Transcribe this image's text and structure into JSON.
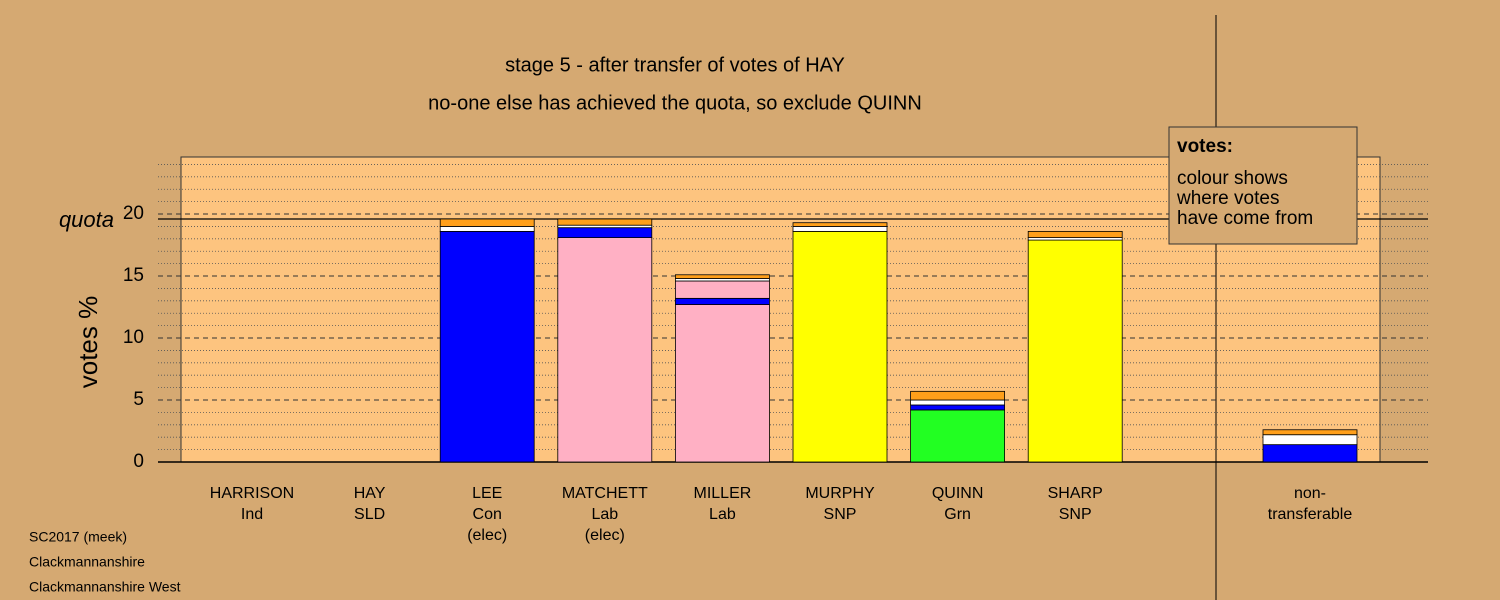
{
  "chart_data": {
    "type": "stacked-bar",
    "title": "stage 5 - after transfer of votes of HAY",
    "subtitle": "no-one else has achieved the quota, so exclude QUINN",
    "y_label": "votes %",
    "quota": {
      "label": "quota",
      "value": 19.6
    },
    "ylim": [
      0,
      24.6
    ],
    "yticks": [
      0,
      5,
      10,
      15,
      20
    ],
    "minor_yticks": [
      1,
      2,
      3,
      4,
      6,
      7,
      8,
      9,
      11,
      12,
      13,
      14,
      16,
      17,
      18,
      19,
      21,
      22,
      23,
      24
    ],
    "categories": [
      [
        "HARRISON",
        "Ind"
      ],
      [
        "HAY",
        "SLD"
      ],
      [
        "LEE",
        "Con",
        "(elec)"
      ],
      [
        "MATCHETT",
        "Lab",
        "(elec)"
      ],
      [
        "MILLER",
        "Lab"
      ],
      [
        "MURPHY",
        "SNP"
      ],
      [
        "QUINN",
        "Grn"
      ],
      [
        "SHARP",
        "SNP"
      ]
    ],
    "stacks": [
      [],
      [],
      [
        {
          "color": "#0000ff",
          "value": 18.6
        },
        {
          "color": "#ffffff",
          "value": 0.4
        },
        {
          "color": "#ff9f1a",
          "value": 0.6
        }
      ],
      [
        {
          "color": "#ffb0c4",
          "value": 18.1
        },
        {
          "color": "#0000ff",
          "value": 0.8
        },
        {
          "color": "#ffffff",
          "value": 0.2
        },
        {
          "color": "#ff9f1a",
          "value": 0.5
        }
      ],
      [
        {
          "color": "#ffb0c4",
          "value": 12.7
        },
        {
          "color": "#0000ff",
          "value": 0.5
        },
        {
          "color": "#ffb0c4",
          "value": 1.4
        },
        {
          "color": "#ffffff",
          "value": 0.2
        },
        {
          "color": "#ff9f1a",
          "value": 0.3
        }
      ],
      [
        {
          "color": "#ffff00",
          "value": 18.6
        },
        {
          "color": "#ffffff",
          "value": 0.4
        },
        {
          "color": "#ff9f1a",
          "value": 0.3
        }
      ],
      [
        {
          "color": "#22ff22",
          "value": 4.2
        },
        {
          "color": "#0000ff",
          "value": 0.4
        },
        {
          "color": "#ffffff",
          "value": 0.4
        },
        {
          "color": "#ff9f1a",
          "value": 0.7
        }
      ],
      [
        {
          "color": "#ffff00",
          "value": 17.9
        },
        {
          "color": "#ffffff",
          "value": 0.2
        },
        {
          "color": "#ff9f1a",
          "value": 0.5
        }
      ]
    ],
    "nontransferable": {
      "label": [
        "non-",
        "transferable"
      ],
      "segments": [
        {
          "color": "#0000ff",
          "value": 1.4
        },
        {
          "color": "#ffffff",
          "value": 0.8
        },
        {
          "color": "#ff9f1a",
          "value": 0.4
        }
      ]
    },
    "legend": {
      "title": "votes:",
      "lines": [
        "colour shows",
        "where votes",
        "have come from"
      ]
    },
    "footer": [
      "SC2017 (meek)",
      "Clackmannanshire",
      "Clackmannanshire West"
    ]
  }
}
